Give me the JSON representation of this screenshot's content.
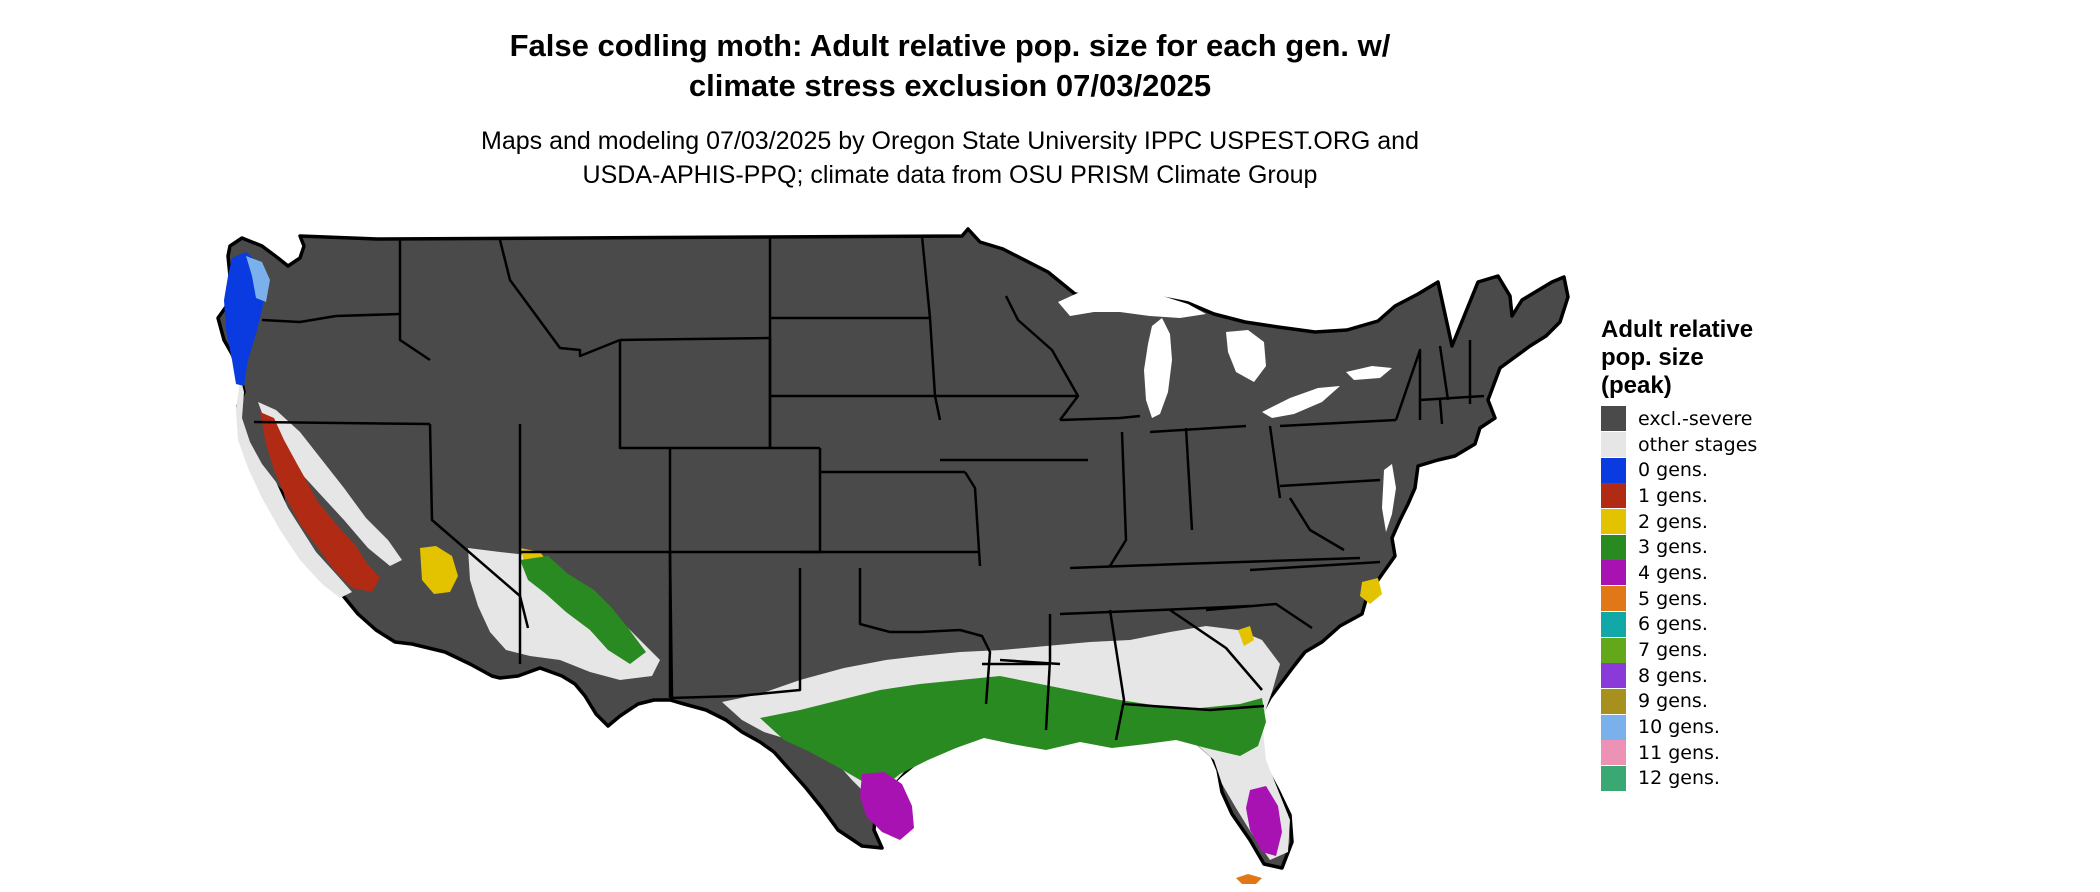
{
  "title": {
    "line1": "False codling moth: Adult relative pop. size for each gen. w/",
    "line2": "climate stress exclusion 07/03/2025"
  },
  "subtitle": {
    "line1": "Maps and modeling 07/03/2025 by Oregon State University IPPC USPEST.ORG and",
    "line2": "USDA-APHIS-PPQ; climate data from OSU PRISM Climate Group"
  },
  "legend": {
    "title_line1": "Adult relative",
    "title_line2": "pop. size",
    "title_line3": "(peak)",
    "items": [
      {
        "label": "excl.-severe",
        "color": "#4a4a4a"
      },
      {
        "label": "other stages",
        "color": "#e6e6e6"
      },
      {
        "label": "0 gens.",
        "color": "#0a3be0"
      },
      {
        "label": "1 gens.",
        "color": "#b02a14"
      },
      {
        "label": "2 gens.",
        "color": "#e3c200"
      },
      {
        "label": "3 gens.",
        "color": "#2a8a22"
      },
      {
        "label": "4 gens.",
        "color": "#a812b2"
      },
      {
        "label": "5 gens.",
        "color": "#e07818"
      },
      {
        "label": "6 gens.",
        "color": "#12a8a8"
      },
      {
        "label": "7 gens.",
        "color": "#62a81a"
      },
      {
        "label": "8 gens.",
        "color": "#8a3ad8"
      },
      {
        "label": "9 gens.",
        "color": "#a8901e"
      },
      {
        "label": "10 gens.",
        "color": "#7ab0ec"
      },
      {
        "label": "11 gens.",
        "color": "#ec92b4"
      },
      {
        "label": "12 gens.",
        "color": "#3aa872"
      }
    ]
  }
}
